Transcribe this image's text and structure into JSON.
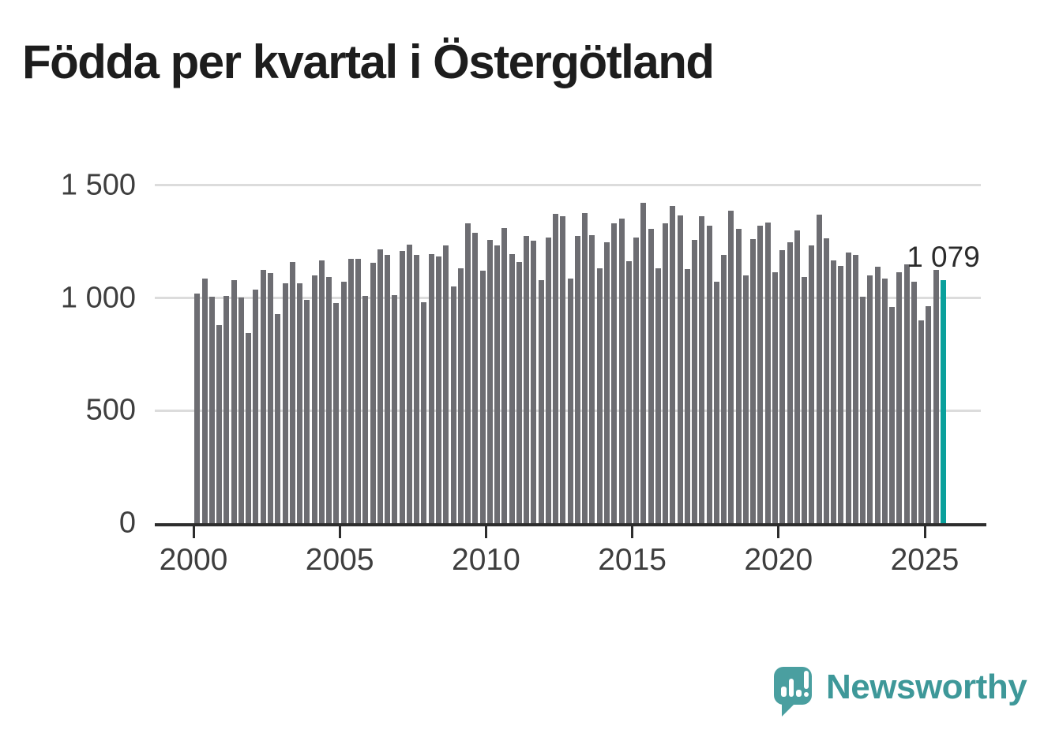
{
  "title": "Födda per kvartal i Östergötland",
  "chart_data": {
    "type": "bar",
    "title": "Födda per kvartal i Östergötland",
    "xlabel": "",
    "ylabel": "",
    "ylim": [
      0,
      1500
    ],
    "grid": true,
    "legend": false,
    "y_ticks": [
      {
        "value": 0,
        "label": "0"
      },
      {
        "value": 500,
        "label": "500"
      },
      {
        "value": 1000,
        "label": "1 000"
      },
      {
        "value": 1500,
        "label": "1 500"
      }
    ],
    "x_ticks": [
      {
        "value": 2000,
        "label": "2000"
      },
      {
        "value": 2005,
        "label": "2005"
      },
      {
        "value": 2010,
        "label": "2010"
      },
      {
        "value": 2015,
        "label": "2015"
      },
      {
        "value": 2020,
        "label": "2020"
      },
      {
        "value": 2025,
        "label": "2025"
      }
    ],
    "categories": [
      "2000 Q1",
      "2000 Q2",
      "2000 Q3",
      "2000 Q4",
      "2001 Q1",
      "2001 Q2",
      "2001 Q3",
      "2001 Q4",
      "2002 Q1",
      "2002 Q2",
      "2002 Q3",
      "2002 Q4",
      "2003 Q1",
      "2003 Q2",
      "2003 Q3",
      "2003 Q4",
      "2004 Q1",
      "2004 Q2",
      "2004 Q3",
      "2004 Q4",
      "2005 Q1",
      "2005 Q2",
      "2005 Q3",
      "2005 Q4",
      "2006 Q1",
      "2006 Q2",
      "2006 Q3",
      "2006 Q4",
      "2007 Q1",
      "2007 Q2",
      "2007 Q3",
      "2007 Q4",
      "2008 Q1",
      "2008 Q2",
      "2008 Q3",
      "2008 Q4",
      "2009 Q1",
      "2009 Q2",
      "2009 Q3",
      "2009 Q4",
      "2010 Q1",
      "2010 Q2",
      "2010 Q3",
      "2010 Q4",
      "2011 Q1",
      "2011 Q2",
      "2011 Q3",
      "2011 Q4",
      "2012 Q1",
      "2012 Q2",
      "2012 Q3",
      "2012 Q4",
      "2013 Q1",
      "2013 Q2",
      "2013 Q3",
      "2013 Q4",
      "2014 Q1",
      "2014 Q2",
      "2014 Q3",
      "2014 Q4",
      "2015 Q1",
      "2015 Q2",
      "2015 Q3",
      "2015 Q4",
      "2016 Q1",
      "2016 Q2",
      "2016 Q3",
      "2016 Q4",
      "2017 Q1",
      "2017 Q2",
      "2017 Q3",
      "2017 Q4",
      "2018 Q1",
      "2018 Q2",
      "2018 Q3",
      "2018 Q4",
      "2019 Q1",
      "2019 Q2",
      "2019 Q3",
      "2019 Q4",
      "2020 Q1",
      "2020 Q2",
      "2020 Q3",
      "2020 Q4",
      "2021 Q1",
      "2021 Q2",
      "2021 Q3",
      "2021 Q4",
      "2022 Q1",
      "2022 Q2",
      "2022 Q3",
      "2022 Q4",
      "2023 Q1",
      "2023 Q2",
      "2023 Q3",
      "2023 Q4",
      "2024 Q1",
      "2024 Q2",
      "2024 Q3",
      "2024 Q4",
      "2025 Q1",
      "2025 Q2",
      "2025 Q3"
    ],
    "values": [
      1021,
      1085,
      1006,
      878,
      1009,
      1081,
      1001,
      843,
      1038,
      1125,
      1110,
      928,
      1064,
      1160,
      1064,
      992,
      1102,
      1166,
      1094,
      977,
      1071,
      1174,
      1174,
      1009,
      1156,
      1215,
      1191,
      1012,
      1209,
      1238,
      1192,
      980,
      1195,
      1183,
      1235,
      1053,
      1131,
      1330,
      1288,
      1122,
      1259,
      1235,
      1311,
      1195,
      1160,
      1274,
      1255,
      1079,
      1268,
      1373,
      1362,
      1088,
      1276,
      1376,
      1280,
      1131,
      1249,
      1330,
      1352,
      1163,
      1270,
      1423,
      1307,
      1133,
      1330,
      1407,
      1365,
      1130,
      1258,
      1363,
      1322,
      1073,
      1191,
      1386,
      1307,
      1102,
      1261,
      1322,
      1334,
      1114,
      1214,
      1249,
      1299,
      1093,
      1235,
      1371,
      1264,
      1168,
      1143,
      1201,
      1190,
      1006,
      1099,
      1140,
      1087,
      959,
      1115,
      1151,
      1073,
      899,
      963,
      1125,
      1079
    ],
    "highlight": {
      "index": 102,
      "category": "2025 Q3",
      "value": 1079,
      "label": "1 079"
    },
    "colors": {
      "bar": "#6d6d72",
      "highlight": "#0aa09c",
      "gridline": "#dcdcdc",
      "axis": "#2d2d2d",
      "tick_text": "#3e3e3e",
      "title_text": "#1d1d1d"
    }
  },
  "branding": {
    "logo_text": "Newsworthy",
    "logo_color": "#4a9fa0",
    "logo_text_color": "#3e9899",
    "logo_icon": "speech-bubble-bar-chart-exclamation"
  }
}
